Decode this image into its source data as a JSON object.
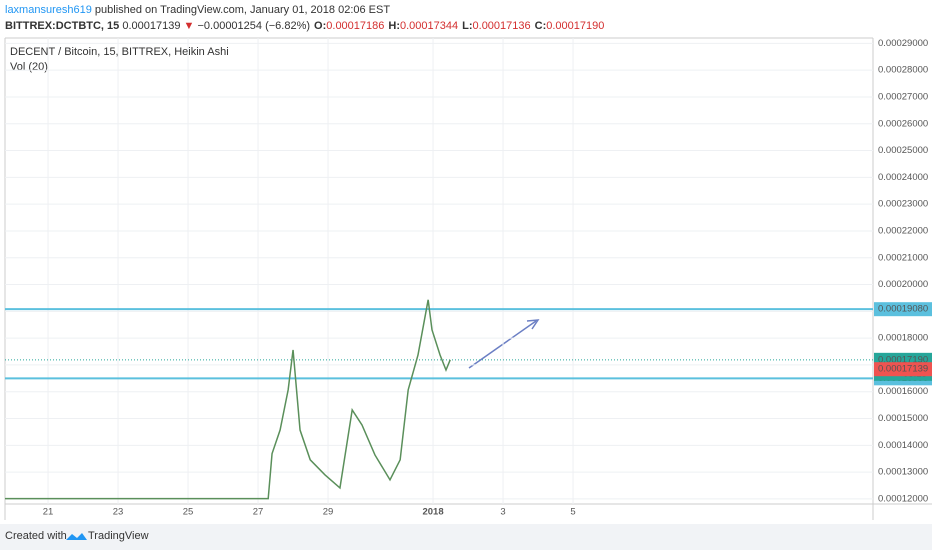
{
  "header": {
    "user": "laxmansuresh619",
    "published": "published on TradingView.com, January 01, 2018 02:06 EST",
    "symbol": "BITTREX:DCTBTC, 15",
    "last": "0.00017139",
    "arrow": "▼",
    "change": "−0.00001254 (−6.82%)",
    "ohlc": [
      {
        "label": "O:",
        "value": "0.00017186"
      },
      {
        "label": "H:",
        "value": "0.00017344"
      },
      {
        "label": "L:",
        "value": "0.00017136"
      },
      {
        "label": "C:",
        "value": "0.00017190"
      }
    ]
  },
  "chart_data": {
    "type": "line",
    "legend": [
      "DECENT / Bitcoin, 15, BITTREX, Heikin Ashi",
      "Vol (20)"
    ],
    "x": [
      19.77,
      23.91,
      27.29,
      27.4,
      27.63,
      27.86,
      28.0,
      28.2,
      28.49,
      28.91,
      29.34,
      29.69,
      29.97,
      30.34,
      30.77,
      31.06,
      31.29,
      31.57,
      31.86,
      31.97,
      32.2,
      32.37,
      32.49
    ],
    "series": [
      {
        "name": "DECENT / Bitcoin",
        "color": "#5a8f5a",
        "values": [
          0.0001201,
          0.0001201,
          0.0001201,
          0.0001369,
          0.0001457,
          0.0001607,
          0.0001756,
          0.0001457,
          0.0001346,
          0.000129,
          0.0001241,
          0.0001532,
          0.0001476,
          0.0001364,
          0.0001271,
          0.0001346,
          0.0001607,
          0.0001737,
          0.0001943,
          0.0001831,
          0.0001737,
          0.0001681,
          0.0001719
        ]
      }
    ],
    "xlim": [
      19.77,
      44.57
    ],
    "xticks": [
      21,
      23,
      25,
      27,
      29,
      {
        "value": 32,
        "label": "2018"
      },
      {
        "value": 34,
        "label": "3"
      },
      {
        "value": 36,
        "label": "5"
      }
    ],
    "ylim": [
      0.0001181,
      0.000292
    ],
    "yticks": [
      {
        "value": 0.00012,
        "label": "0.00012000"
      },
      {
        "value": 0.00013,
        "label": "0.00013000"
      },
      {
        "value": 0.00014,
        "label": "0.00014000"
      },
      {
        "value": 0.00015,
        "label": "0.00015000"
      },
      {
        "value": 0.00016,
        "label": "0.00016000"
      },
      {
        "value": 0.00017,
        "label": "0.00017000"
      },
      {
        "value": 0.00018,
        "label": "0.00018000"
      },
      {
        "value": 0.00019,
        "label": "0.00019000"
      },
      {
        "value": 0.0002,
        "label": "0.00020000"
      },
      {
        "value": 0.00021,
        "label": "0.00021000"
      },
      {
        "value": 0.00022,
        "label": "0.00022000"
      },
      {
        "value": 0.00023,
        "label": "0.00023000"
      },
      {
        "value": 0.00024,
        "label": "0.00024000"
      },
      {
        "value": 0.00025,
        "label": "0.00025000"
      },
      {
        "value": 0.00026,
        "label": "0.00026000"
      },
      {
        "value": 0.00027,
        "label": "0.00027000"
      },
      {
        "value": 0.00028,
        "label": "0.00028000"
      },
      {
        "value": 0.00029,
        "label": "0.00029000"
      }
    ],
    "grid": true,
    "levels": [
      {
        "value": 0.0001908,
        "label": "0.00019080",
        "color": "#5bc0de"
      },
      {
        "value": 0.000165,
        "label": "0.00016500",
        "color": "#5bc0de"
      }
    ],
    "last_price": {
      "value": 0.0001719,
      "label": "0.00017190",
      "countdown": "08:15",
      "color": "#26a69a"
    },
    "close_label": {
      "value": 0.00017139,
      "label": "0.00017139",
      "color": "#ef5350"
    }
  },
  "footer": {
    "created": "Created with",
    "brand": "TradingView"
  }
}
